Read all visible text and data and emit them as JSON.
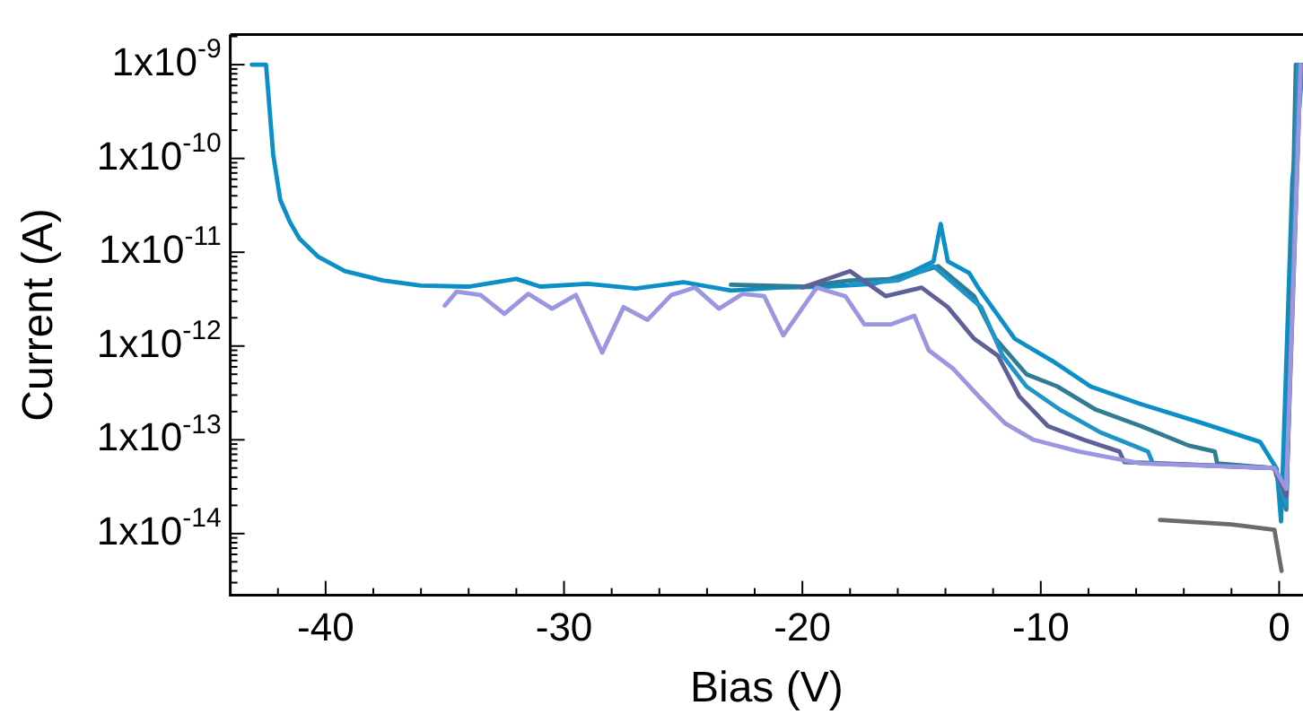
{
  "chart_data": {
    "type": "line",
    "xlabel": "Bias (V)",
    "ylabel": "Current (A)",
    "log": "y",
    "marker": "none",
    "line_style": "solid",
    "grid": false,
    "legend": false,
    "xlim": [
      -44,
      1
    ],
    "xticks": [
      -40,
      {
        "value": -38,
        "label": null
      },
      {
        "value": -36,
        "label": null
      },
      {
        "value": -34,
        "label": null
      },
      {
        "value": -32,
        "label": null
      },
      -30,
      {
        "value": -28,
        "label": null
      },
      {
        "value": -26,
        "label": null
      },
      {
        "value": -24,
        "label": null
      },
      {
        "value": -22,
        "label": null
      },
      -20,
      {
        "value": -18,
        "label": null
      },
      {
        "value": -16,
        "label": null
      },
      {
        "value": -14,
        "label": null
      },
      {
        "value": -12,
        "label": null
      },
      -10,
      {
        "value": -8,
        "label": null
      },
      {
        "value": -6,
        "label": null
      },
      {
        "value": -4,
        "label": null
      },
      {
        "value": -2,
        "label": null
      },
      0,
      {
        "value": -42,
        "label": null
      }
    ],
    "ylim": [
      2.2e-15,
      2.1e-09
    ],
    "yticks": [
      {
        "value": 1e-14,
        "label": "1x10$^{-14}$"
      },
      {
        "value": 1e-13,
        "label": "1x10$^{-13}$"
      },
      {
        "value": 1e-12,
        "label": "1x10$^{-12}$"
      },
      {
        "value": 1e-11,
        "label": "1x10$^{-11}$"
      },
      {
        "value": 1e-10,
        "label": "1x10$^{-10}$"
      },
      {
        "value": 1e-09,
        "label": "1x10$^{-9}$"
      },
      {
        "value": 3e-15,
        "label": null
      },
      {
        "value": 4e-15,
        "label": null
      },
      {
        "value": 5e-15,
        "label": null
      },
      {
        "value": 6e-15,
        "label": null
      },
      {
        "value": 7e-15,
        "label": null
      },
      {
        "value": 8e-15,
        "label": null
      },
      {
        "value": 9e-15,
        "label": null
      },
      {
        "value": 2e-14,
        "label": null
      },
      {
        "value": 3e-14,
        "label": null
      },
      {
        "value": 4e-14,
        "label": null
      },
      {
        "value": 5e-14,
        "label": null
      },
      {
        "value": 6e-14,
        "label": null
      },
      {
        "value": 7e-14,
        "label": null
      },
      {
        "value": 8e-14,
        "label": null
      },
      {
        "value": 9e-14,
        "label": null
      },
      {
        "value": 2e-13,
        "label": null
      },
      {
        "value": 3e-13,
        "label": null
      },
      {
        "value": 4e-13,
        "label": null
      },
      {
        "value": 5e-13,
        "label": null
      },
      {
        "value": 6e-13,
        "label": null
      },
      {
        "value": 7e-13,
        "label": null
      },
      {
        "value": 8e-13,
        "label": null
      },
      {
        "value": 9e-13,
        "label": null
      },
      {
        "value": 2e-12,
        "label": null
      },
      {
        "value": 3e-12,
        "label": null
      },
      {
        "value": 4e-12,
        "label": null
      },
      {
        "value": 5e-12,
        "label": null
      },
      {
        "value": 6e-12,
        "label": null
      },
      {
        "value": 7e-12,
        "label": null
      },
      {
        "value": 8e-12,
        "label": null
      },
      {
        "value": 9e-12,
        "label": null
      },
      {
        "value": 2e-11,
        "label": null
      },
      {
        "value": 3e-11,
        "label": null
      },
      {
        "value": 4e-11,
        "label": null
      },
      {
        "value": 5e-11,
        "label": null
      },
      {
        "value": 6e-11,
        "label": null
      },
      {
        "value": 7e-11,
        "label": null
      },
      {
        "value": 8e-11,
        "label": null
      },
      {
        "value": 9e-11,
        "label": null
      },
      {
        "value": 2e-10,
        "label": null
      },
      {
        "value": 3e-10,
        "label": null
      },
      {
        "value": 4e-10,
        "label": null
      },
      {
        "value": 5e-10,
        "label": null
      },
      {
        "value": 6e-10,
        "label": null
      },
      {
        "value": 7e-10,
        "label": null
      },
      {
        "value": 8e-10,
        "label": null
      },
      {
        "value": 9e-10,
        "label": null
      },
      {
        "value": 2e-09,
        "label": null
      }
    ],
    "series": [
      {
        "color": "#9b96e0",
        "x": [
          -35,
          -34.5,
          -33.5,
          -32.5,
          -31.5,
          -30.5,
          -29.5,
          -28.4,
          -27.5,
          -26.5,
          -25.5,
          -24.5,
          -23.5,
          -22.5,
          -21.6,
          -20.8,
          -19.4,
          -18.2,
          -17.4,
          -16.3,
          -15.3,
          -14.7,
          -13.7,
          -12.6,
          -11.5,
          -10.3,
          -8.4,
          -5.8,
          -0.2,
          0.3,
          0.9
        ],
        "values": [
          2.7e-12,
          3.8e-12,
          3.5e-12,
          2.2e-12,
          3.6e-12,
          2.5e-12,
          3.5e-12,
          8.5e-13,
          2.6e-12,
          1.9e-12,
          3.5e-12,
          4.2e-12,
          2.5e-12,
          3.6e-12,
          3.4e-12,
          1.3e-12,
          4.2e-12,
          3.4e-12,
          1.7e-12,
          1.7e-12,
          2.1e-12,
          9e-13,
          5.8e-13,
          2.9e-13,
          1.5e-13,
          1e-13,
          7.5e-14,
          5.6e-14,
          5e-14,
          3e-14,
          1e-09
        ]
      },
      {
        "color": "#5e6198",
        "x": [
          -20,
          -18,
          -16.5,
          -15,
          -13.9,
          -12.8,
          -11.8,
          -10.9,
          -9.7,
          -8.2,
          -6.7,
          -6.5,
          -0.2,
          0.3,
          0.9
        ],
        "values": [
          4.2e-12,
          6.3e-12,
          3.4e-12,
          4.2e-12,
          2.6e-12,
          1.2e-12,
          7.9e-13,
          2.9e-13,
          1.4e-13,
          1e-13,
          7.5e-14,
          5.8e-14,
          5e-14,
          2.5e-14,
          1e-09
        ]
      },
      {
        "color": "#1e94c8",
        "x": [
          -18,
          -16,
          -14.5,
          -12.5,
          -11.6,
          -10.6,
          -9.2,
          -7.5,
          -5.5,
          -5.3,
          -0.2,
          0.3,
          0.8
        ],
        "values": [
          4.5e-12,
          5e-12,
          7.1e-12,
          2.6e-12,
          7.9e-13,
          3.7e-13,
          2.1e-13,
          1.2e-13,
          7.5e-14,
          5.6e-14,
          5e-14,
          2e-14,
          1e-09
        ]
      },
      {
        "color": "#2f7c93",
        "x": [
          -23,
          -20,
          -18,
          -16,
          -14.3,
          -12.8,
          -11.9,
          -10.6,
          -9.3,
          -7.7,
          -5.8,
          -3.8,
          -2.7,
          -2.6,
          -0.2,
          0.3,
          0.7
        ],
        "values": [
          4.5e-12,
          4.3e-12,
          5e-12,
          5.2e-12,
          7.1e-12,
          3.4e-12,
          1.2e-12,
          5e-13,
          3.7e-13,
          2.1e-13,
          1.4e-13,
          8.7e-14,
          7.5e-14,
          5.6e-14,
          5e-14,
          1.8e-14,
          1e-09
        ]
      },
      {
        "color": "#0b8fc7",
        "x": [
          -43.1,
          -42.5,
          -42.2,
          -41.9,
          -41.5,
          -41.1,
          -40.3,
          -39.2,
          -37.6,
          -36,
          -34,
          -32,
          -31,
          -29,
          -27,
          -25,
          -23,
          -21,
          -19,
          -17,
          -15.5,
          -14.5,
          -14.2,
          -13.9,
          -13,
          -12.6,
          -11.1,
          -9.5,
          -7.9,
          -5.8,
          -3.2,
          -0.8,
          -0.1,
          0.08,
          0.55,
          1
        ],
        "values": [
          1e-09,
          1e-09,
          1.1e-10,
          3.6e-11,
          2.1e-11,
          1.4e-11,
          8.9e-12,
          6.3e-12,
          5e-12,
          4.4e-12,
          4.3e-12,
          5.2e-12,
          4.3e-12,
          4.6e-12,
          4.1e-12,
          4.8e-12,
          3.9e-12,
          4.2e-12,
          4.3e-12,
          4.6e-12,
          6e-12,
          8e-12,
          2e-11,
          8e-12,
          6e-12,
          4.1e-12,
          1.2e-12,
          6.9e-13,
          3.7e-13,
          2.4e-13,
          1.5e-13,
          9.5e-14,
          4.9e-14,
          1.35e-14,
          5.6e-11,
          1e-09
        ]
      },
      {
        "color": "#6b6b6b",
        "x": [
          -5,
          -2,
          -0.2,
          0.1
        ],
        "values": [
          1.4e-14,
          1.25e-14,
          1.1e-14,
          4e-15
        ]
      }
    ]
  }
}
